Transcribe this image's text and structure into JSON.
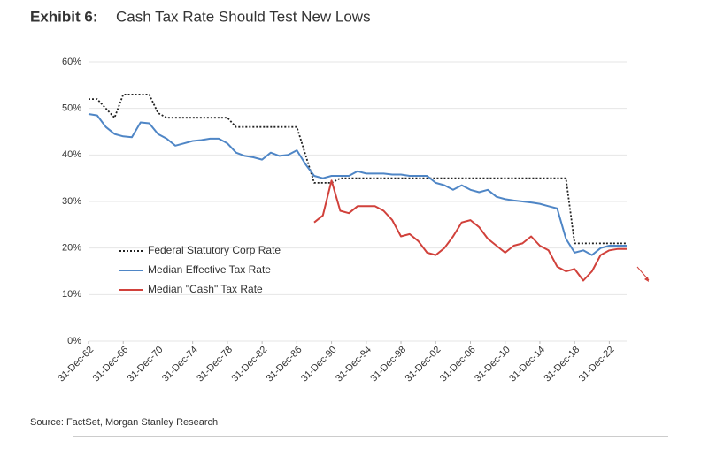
{
  "chart_data": {
    "type": "line",
    "label": "Exhibit 6:",
    "title": "Cash Tax Rate Should Test New Lows",
    "source": "Source: FactSet, Morgan Stanley Research",
    "x": [
      1962,
      1963,
      1964,
      1965,
      1966,
      1967,
      1968,
      1969,
      1970,
      1971,
      1972,
      1973,
      1974,
      1975,
      1976,
      1977,
      1978,
      1979,
      1980,
      1981,
      1982,
      1983,
      1984,
      1985,
      1986,
      1987,
      1988,
      1989,
      1990,
      1991,
      1992,
      1993,
      1994,
      1995,
      1996,
      1997,
      1998,
      1999,
      2000,
      2001,
      2002,
      2003,
      2004,
      2005,
      2006,
      2007,
      2008,
      2009,
      2010,
      2011,
      2012,
      2013,
      2014,
      2015,
      2016,
      2017,
      2018,
      2019,
      2020,
      2021,
      2022,
      2023,
      2024
    ],
    "xlim": [
      1962,
      2024
    ],
    "xticks": [
      {
        "value": 1962,
        "label": "31-Dec-62"
      },
      {
        "value": 1966,
        "label": "31-Dec-66"
      },
      {
        "value": 1970,
        "label": "31-Dec-70"
      },
      {
        "value": 1974,
        "label": "31-Dec-74"
      },
      {
        "value": 1978,
        "label": "31-Dec-78"
      },
      {
        "value": 1982,
        "label": "31-Dec-82"
      },
      {
        "value": 1986,
        "label": "31-Dec-86"
      },
      {
        "value": 1990,
        "label": "31-Dec-90"
      },
      {
        "value": 1994,
        "label": "31-Dec-94"
      },
      {
        "value": 1998,
        "label": "31-Dec-98"
      },
      {
        "value": 2002,
        "label": "31-Dec-02"
      },
      {
        "value": 2006,
        "label": "31-Dec-06"
      },
      {
        "value": 2010,
        "label": "31-Dec-10"
      },
      {
        "value": 2014,
        "label": "31-Dec-14"
      },
      {
        "value": 2018,
        "label": "31-Dec-18"
      },
      {
        "value": 2022,
        "label": "31-Dec-22"
      }
    ],
    "ylim": [
      0,
      60
    ],
    "yticks": [
      {
        "value": 0,
        "label": "0%"
      },
      {
        "value": 10,
        "label": "10%"
      },
      {
        "value": 20,
        "label": "20%"
      },
      {
        "value": 30,
        "label": "30%"
      },
      {
        "value": 40,
        "label": "40%"
      },
      {
        "value": 50,
        "label": "50%"
      },
      {
        "value": 60,
        "label": "60%"
      }
    ],
    "grid": true,
    "series": [
      {
        "name": "Federal Statutory Corp Rate",
        "color": "#222222",
        "dash": true,
        "values": [
          52,
          52,
          50,
          48,
          53,
          53,
          53,
          53,
          49,
          48,
          48,
          48,
          48,
          48,
          48,
          48,
          48,
          46,
          46,
          46,
          46,
          46,
          46,
          46,
          46,
          40,
          34,
          34,
          34,
          35,
          35,
          35,
          35,
          35,
          35,
          35,
          35,
          35,
          35,
          35,
          35,
          35,
          35,
          35,
          35,
          35,
          35,
          35,
          35,
          35,
          35,
          35,
          35,
          35,
          35,
          35,
          21,
          21,
          21,
          21,
          21,
          21,
          21
        ]
      },
      {
        "name": "Median Effective Tax Rate",
        "color": "#4f86c6",
        "dash": false,
        "values": [
          48.8,
          48.5,
          46,
          44.5,
          44,
          43.8,
          47,
          46.8,
          44.5,
          43.5,
          42,
          42.5,
          43,
          43.2,
          43.5,
          43.5,
          42.5,
          40.5,
          39.8,
          39.5,
          39,
          40.5,
          39.8,
          40,
          41,
          38,
          35.5,
          35,
          35.5,
          35.5,
          35.5,
          36.5,
          36,
          36,
          36,
          35.8,
          35.8,
          35.5,
          35.5,
          35.5,
          34,
          33.5,
          32.5,
          33.5,
          32.5,
          32,
          32.5,
          31,
          30.5,
          30.2,
          30,
          29.8,
          29.5,
          29,
          28.5,
          22,
          19,
          19.5,
          18.5,
          20,
          20.5,
          20.5,
          20.5
        ]
      },
      {
        "name": "Median \"Cash\" Tax Rate",
        "color": "#d1413b",
        "dash": false,
        "values": [
          null,
          null,
          null,
          null,
          null,
          null,
          null,
          null,
          null,
          null,
          null,
          null,
          null,
          null,
          null,
          null,
          null,
          null,
          null,
          null,
          null,
          null,
          null,
          null,
          null,
          null,
          25.5,
          27,
          34.5,
          28,
          27.5,
          29,
          29,
          29,
          28,
          26,
          22.5,
          23,
          21.5,
          19,
          18.5,
          20,
          22.5,
          25.5,
          26,
          24.5,
          22,
          20.5,
          19,
          20.5,
          21,
          22.5,
          20.5,
          19.5,
          16,
          15,
          15.5,
          13,
          15,
          18.5,
          19.5,
          19.8,
          19.8
        ]
      }
    ]
  }
}
